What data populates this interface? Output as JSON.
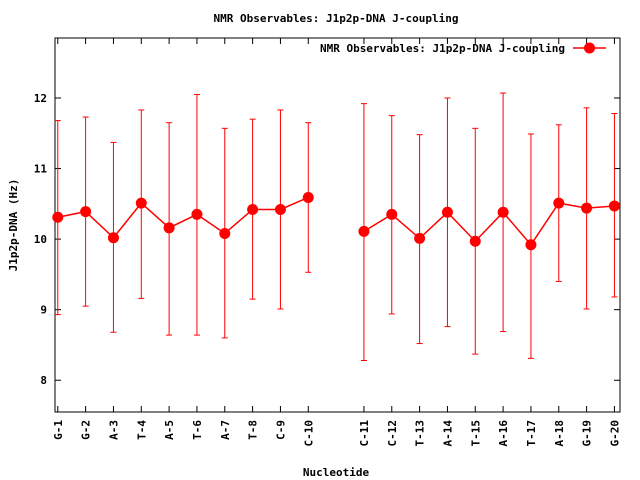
{
  "chart_data": {
    "type": "line",
    "title": "NMR Observables: J1p2p-DNA J-coupling",
    "xlabel": "Nucleotide",
    "ylabel": "J1p2p-DNA (Hz)",
    "ylim": [
      7.55,
      12.85
    ],
    "yticks": [
      8,
      9,
      10,
      11,
      12
    ],
    "grid": false,
    "legend_position": "top-right",
    "colors": {
      "series": "#ff0000",
      "axis": "#000000"
    },
    "x_positions": [
      1,
      2,
      3,
      4,
      5,
      6,
      7,
      8,
      9,
      10,
      12,
      13,
      14,
      15,
      16,
      17,
      18,
      19,
      20,
      21
    ],
    "categories": [
      "G-1",
      "G-2",
      "A-3",
      "T-4",
      "A-5",
      "T-6",
      "A-7",
      "T-8",
      "C-9",
      "C-10",
      "C-11",
      "C-12",
      "T-13",
      "A-14",
      "T-15",
      "A-16",
      "T-17",
      "A-18",
      "G-19",
      "G-20"
    ],
    "series": [
      {
        "name": "NMR Observables: J1p2p-DNA J-coupling",
        "values": [
          10.31,
          10.39,
          10.02,
          10.51,
          10.16,
          10.35,
          10.08,
          10.42,
          10.42,
          10.59,
          10.11,
          10.35,
          10.01,
          10.38,
          9.97,
          10.38,
          9.92,
          10.51,
          10.44,
          10.47
        ],
        "err_low": [
          8.93,
          9.05,
          8.68,
          9.16,
          8.64,
          8.64,
          8.6,
          9.15,
          9.01,
          9.53,
          8.28,
          8.94,
          8.52,
          8.76,
          8.37,
          8.69,
          8.31,
          9.4,
          9.01,
          9.18
        ],
        "err_high": [
          11.68,
          11.73,
          11.37,
          11.83,
          11.65,
          12.05,
          11.57,
          11.7,
          11.83,
          11.65,
          11.92,
          11.75,
          11.48,
          12.0,
          11.57,
          12.07,
          11.49,
          11.62,
          11.86,
          11.78
        ]
      }
    ]
  }
}
